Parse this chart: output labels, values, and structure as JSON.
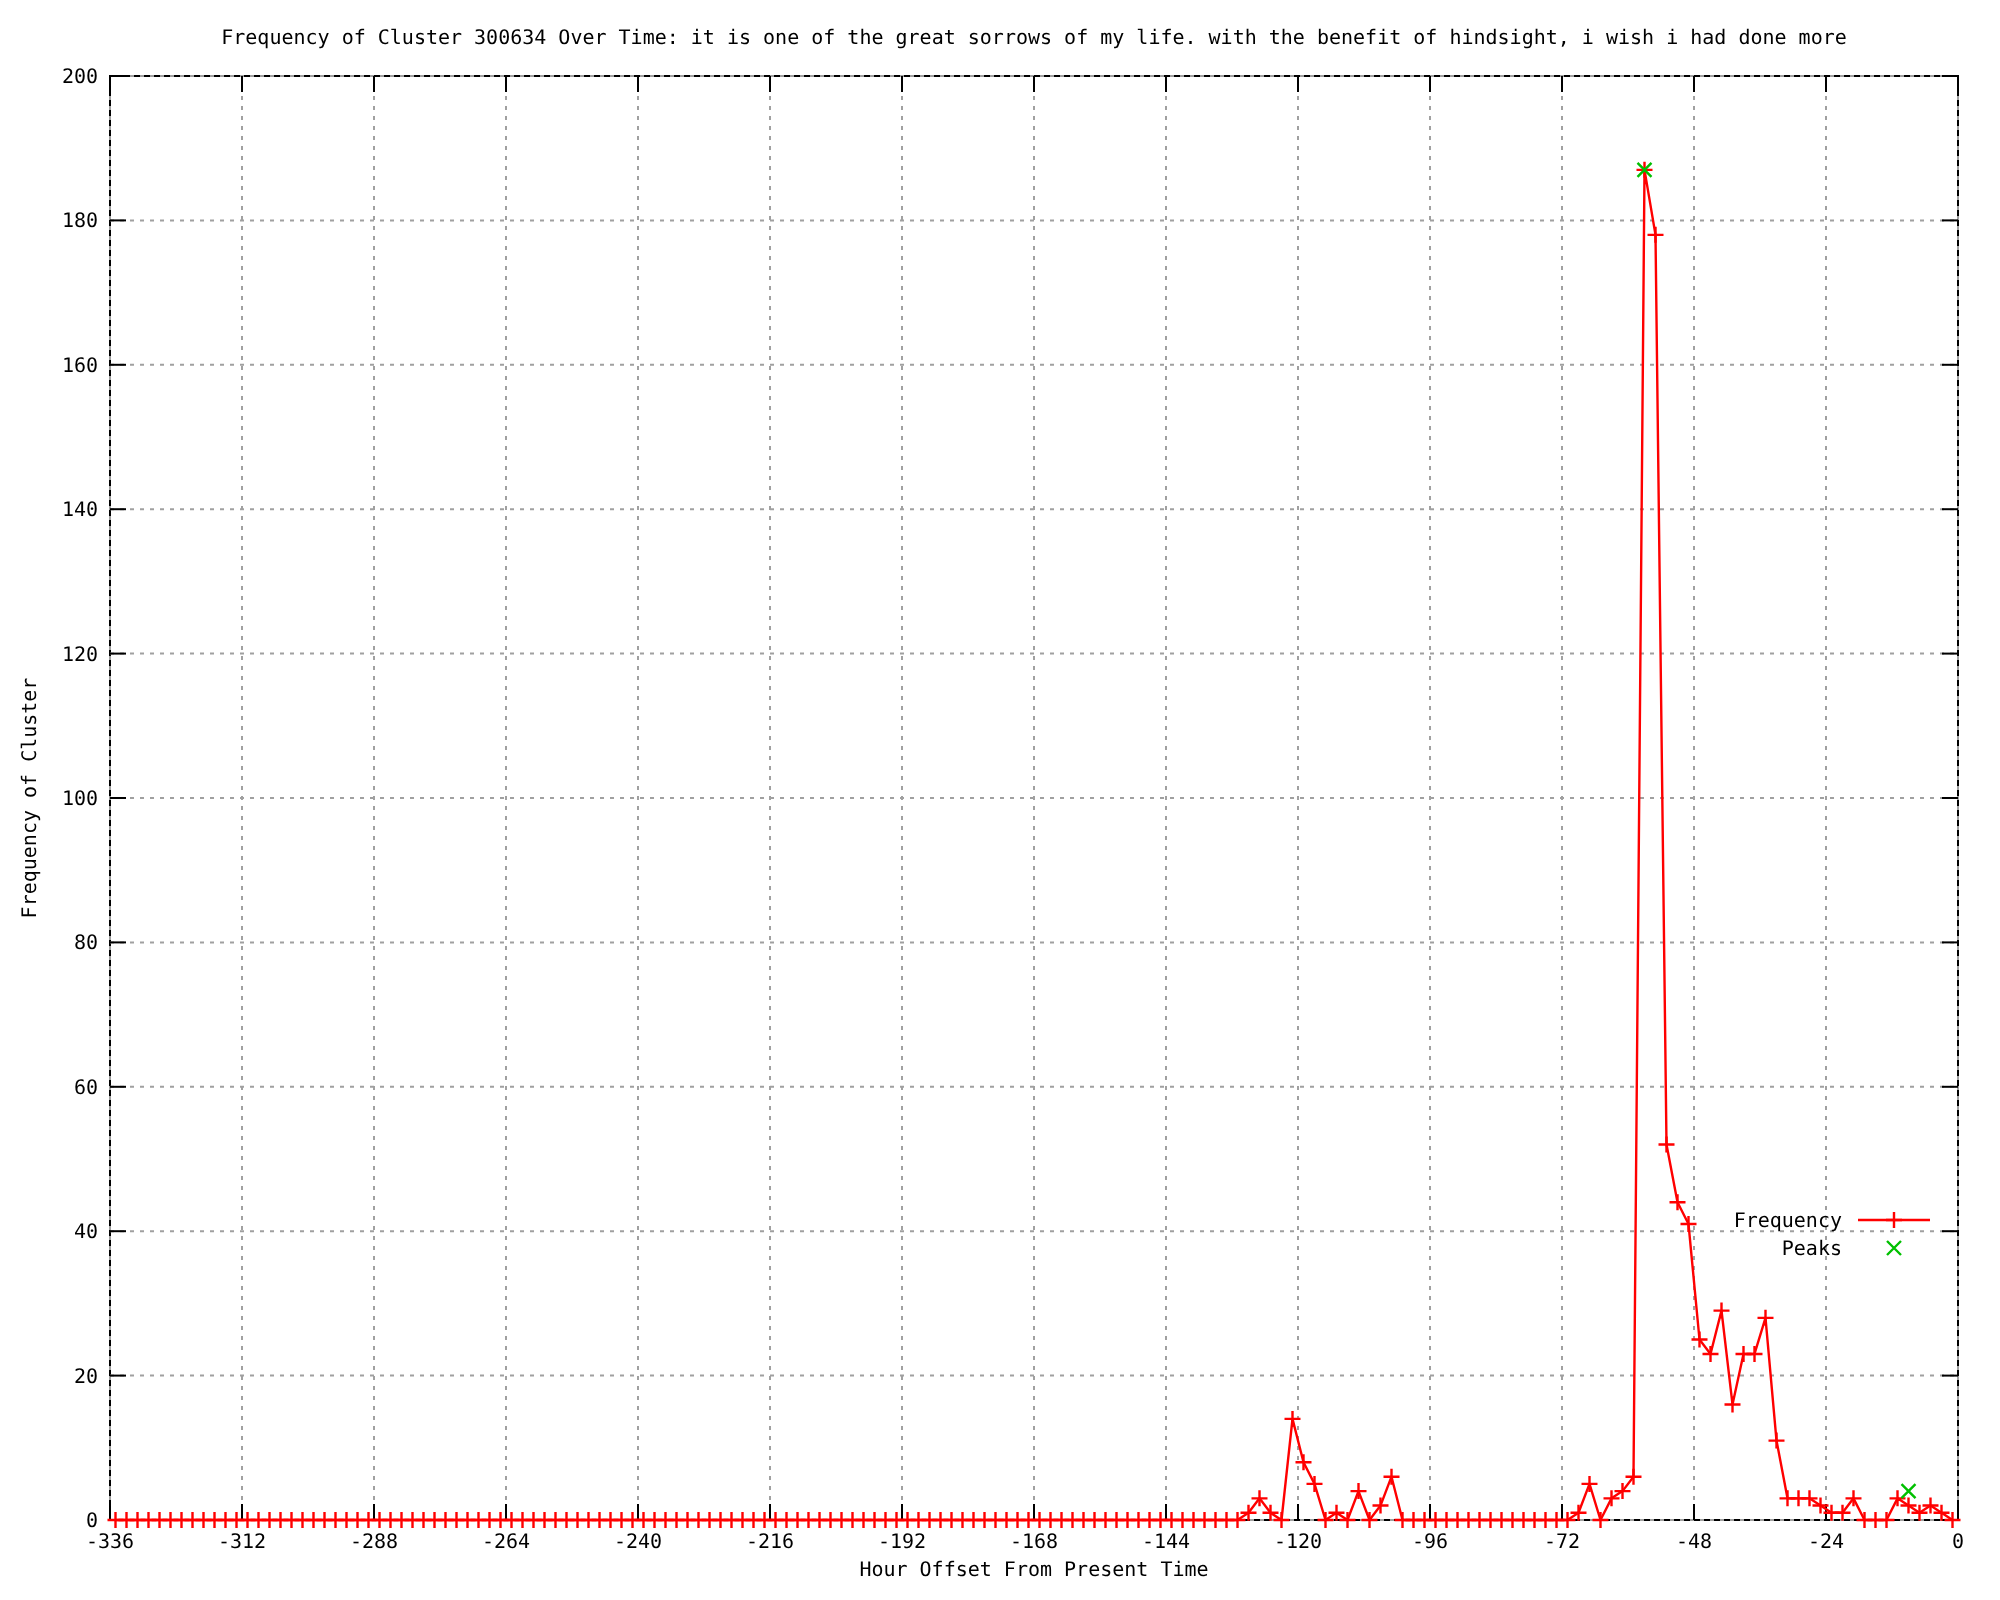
{
  "chart_data": {
    "type": "line",
    "title": "Frequency of Cluster 300634 Over Time: it is one of the great sorrows of my life. with the benefit of hindsight, i wish i had done more",
    "xlabel": "Hour Offset From Present Time",
    "ylabel": "Frequency of Cluster",
    "xlim": [
      -336,
      0
    ],
    "xticks": [
      -336,
      -312,
      -288,
      -264,
      -240,
      -216,
      -192,
      -168,
      -144,
      -120,
      -96,
      -72,
      -48,
      -24,
      0
    ],
    "ylim": [
      0,
      200
    ],
    "yticks": [
      0,
      20,
      40,
      60,
      80,
      100,
      120,
      140,
      160,
      180,
      200
    ],
    "grid": true,
    "legend": "bottom right",
    "series": [
      {
        "name": "Frequency",
        "type": "line",
        "color": "#ff0000",
        "marker": "cross",
        "x": [
          -335,
          -333,
          -331,
          -329,
          -327,
          -325,
          -323,
          -321,
          -319,
          -317,
          -315,
          -313,
          -311,
          -309,
          -307,
          -305,
          -303,
          -301,
          -299,
          -297,
          -295,
          -293,
          -291,
          -289,
          -287,
          -285,
          -283,
          -281,
          -279,
          -277,
          -275,
          -273,
          -271,
          -269,
          -267,
          -265,
          -263,
          -261,
          -259,
          -257,
          -255,
          -253,
          -251,
          -249,
          -247,
          -245,
          -243,
          -241,
          -239,
          -237,
          -235,
          -233,
          -231,
          -229,
          -227,
          -225,
          -223,
          -221,
          -219,
          -217,
          -215,
          -213,
          -211,
          -209,
          -207,
          -205,
          -203,
          -201,
          -199,
          -197,
          -195,
          -193,
          -191,
          -189,
          -187,
          -185,
          -183,
          -181,
          -179,
          -177,
          -175,
          -173,
          -171,
          -169,
          -167,
          -165,
          -163,
          -161,
          -159,
          -157,
          -155,
          -153,
          -151,
          -149,
          -147,
          -145,
          -143,
          -141,
          -139,
          -137,
          -135,
          -133,
          -131,
          -129,
          -127,
          -125,
          -123,
          -121,
          -119,
          -117,
          -115,
          -113,
          -111,
          -109,
          -107,
          -105,
          -103,
          -101,
          -99,
          -97,
          -95,
          -93,
          -91,
          -89,
          -87,
          -85,
          -83,
          -81,
          -79,
          -77,
          -75,
          -73,
          -71,
          -69,
          -67,
          -65,
          -63,
          -61,
          -59,
          -57,
          -55,
          -53,
          -51,
          -49,
          -47,
          -45,
          -43,
          -41,
          -39,
          -37,
          -35,
          -33,
          -31,
          -29,
          -27,
          -25,
          -23,
          -21,
          -19,
          -17,
          -15,
          -13,
          -11,
          -9,
          -7,
          -5,
          -3,
          -1
        ],
        "values": [
          0,
          0,
          0,
          0,
          0,
          0,
          0,
          0,
          0,
          0,
          0,
          0,
          0,
          0,
          0,
          0,
          0,
          0,
          0,
          0,
          0,
          0,
          0,
          0,
          0,
          0,
          0,
          0,
          0,
          0,
          0,
          0,
          0,
          0,
          0,
          0,
          0,
          0,
          0,
          0,
          0,
          0,
          0,
          0,
          0,
          0,
          0,
          0,
          0,
          0,
          0,
          0,
          0,
          0,
          0,
          0,
          0,
          0,
          0,
          0,
          0,
          0,
          0,
          0,
          0,
          0,
          0,
          0,
          0,
          0,
          0,
          0,
          0,
          0,
          0,
          0,
          0,
          0,
          0,
          0,
          0,
          0,
          0,
          0,
          0,
          0,
          0,
          0,
          0,
          0,
          0,
          0,
          0,
          0,
          0,
          0,
          0,
          0,
          0,
          0,
          0,
          0,
          0,
          1,
          3,
          1,
          0,
          14,
          8,
          5,
          0,
          1,
          0,
          4,
          0,
          2,
          6,
          0,
          0,
          0,
          0,
          0,
          0,
          0,
          0,
          0,
          0,
          0,
          0,
          0,
          0,
          0,
          0,
          1,
          5,
          0,
          3,
          4,
          6,
          187,
          178,
          52,
          44,
          41,
          25,
          23,
          29,
          16,
          23,
          23,
          28,
          11,
          3,
          3,
          3,
          2,
          1,
          1,
          3,
          0,
          0,
          0,
          3,
          2,
          1,
          2,
          1,
          0
        ]
      },
      {
        "name": "Peaks",
        "type": "scatter",
        "color": "#00c000",
        "marker": "cross",
        "x": [
          -57,
          -9
        ],
        "values": [
          187,
          4
        ]
      }
    ]
  }
}
